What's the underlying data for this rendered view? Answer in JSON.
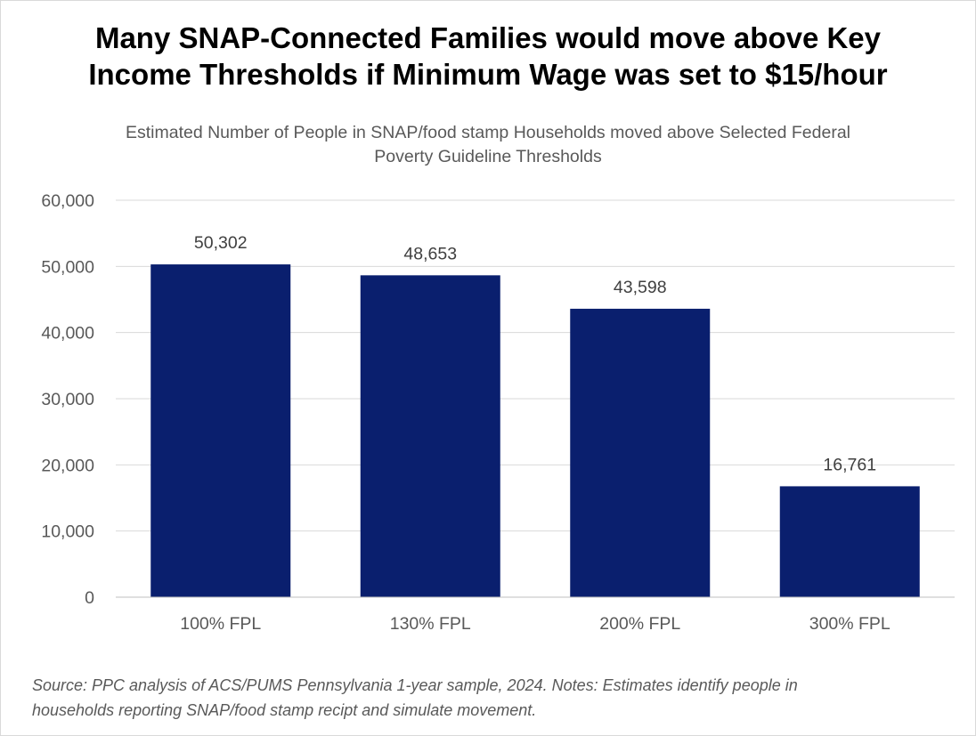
{
  "chart_data": {
    "type": "bar",
    "title_lines": [
      "Many SNAP-Connected Families would move above Key",
      "Income Thresholds if Minimum Wage was set to $15/hour"
    ],
    "subtitle_lines": [
      "Estimated Number of People in SNAP/food stamp Households moved above Selected Federal",
      "Poverty Guideline Thresholds"
    ],
    "categories": [
      "100% FPL",
      "130% FPL",
      "200% FPL",
      "300% FPL"
    ],
    "values": [
      50302,
      48653,
      43598,
      16761
    ],
    "data_labels": [
      "50,302",
      "48,653",
      "43,598",
      "16,761"
    ],
    "ylim": [
      0,
      60000
    ],
    "yticks": [
      0,
      10000,
      20000,
      30000,
      40000,
      50000,
      60000
    ],
    "ytick_labels": [
      "0",
      "10,000",
      "20,000",
      "30,000",
      "40,000",
      "50,000",
      "60,000"
    ],
    "xlabel": "",
    "ylabel": "",
    "grid": true,
    "legend": "none",
    "bar_color": "#0a1f6e",
    "gridline_color": "#d9d9d9"
  },
  "source_lines": [
    "Source: PPC analysis of ACS/PUMS Pennsylvania 1-year sample, 2024. Notes: Estimates identify people in",
    "households reporting SNAP/food stamp recipt and simulate movement."
  ]
}
